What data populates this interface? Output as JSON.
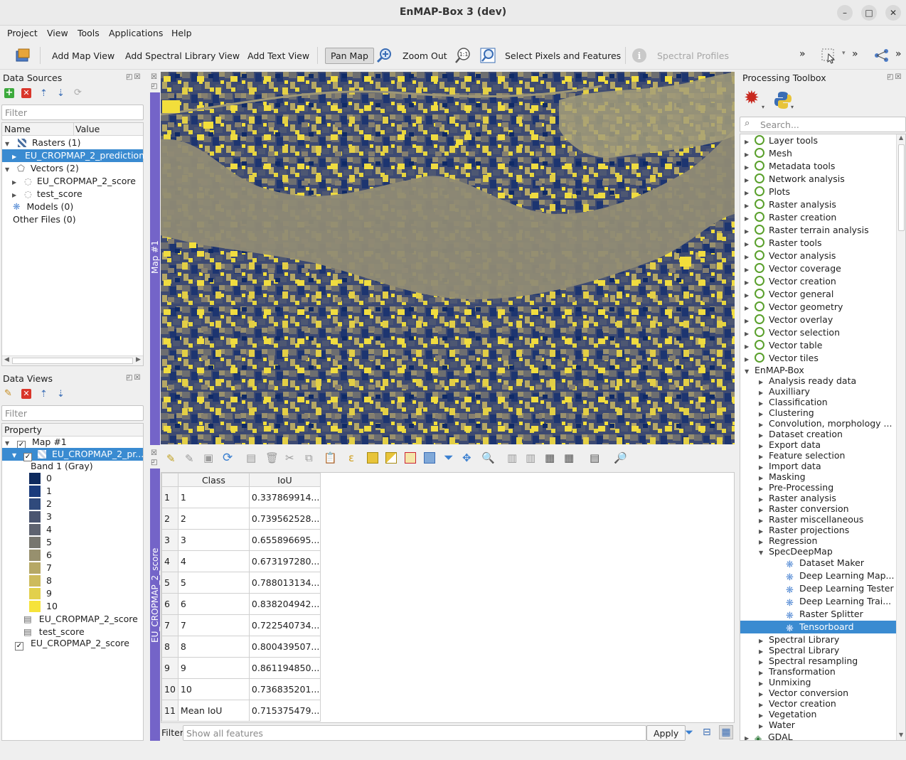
{
  "window": {
    "title": "EnMAP-Box 3 (dev)"
  },
  "menu": [
    "Project",
    "View",
    "Tools",
    "Applications",
    "Help"
  ],
  "toolbar": {
    "add_map_view": "Add Map View",
    "add_spectral_library_view": "Add Spectral Library View",
    "add_text_view": "Add Text View",
    "pan_map": "Pan Map",
    "zoom_out": "Zoom Out",
    "select_pixels": "Select Pixels and Features",
    "spectral_profiles": "Spectral Profiles",
    "overflow": "»"
  },
  "data_sources": {
    "title": "Data Sources",
    "filter_placeholder": "Filter",
    "col_name": "Name",
    "col_value": "Value",
    "rasters": "Rasters (1)",
    "raster_item": "EU_CROPMAP_2_prediction",
    "vectors": "Vectors (2)",
    "vector_items": [
      "EU_CROPMAP_2_score",
      "test_score"
    ],
    "models": "Models (0)",
    "other_files": "Other Files (0)"
  },
  "data_views": {
    "title": "Data Views",
    "filter_placeholder": "Filter",
    "col_property": "Property",
    "map": "Map #1",
    "layer": "EU_CROPMAP_2_pr...",
    "band": "Band 1 (Gray)",
    "classes": [
      {
        "label": "0",
        "color": "#0e2a5e"
      },
      {
        "label": "1",
        "color": "#1a3b7c"
      },
      {
        "label": "2",
        "color": "#304a7c"
      },
      {
        "label": "3",
        "color": "#4a5570"
      },
      {
        "label": "4",
        "color": "#5e6370"
      },
      {
        "label": "5",
        "color": "#77766f"
      },
      {
        "label": "6",
        "color": "#97906e"
      },
      {
        "label": "7",
        "color": "#b6a866"
      },
      {
        "label": "8",
        "color": "#cdbb5c"
      },
      {
        "label": "9",
        "color": "#e2d04c"
      },
      {
        "label": "10",
        "color": "#f6e33a"
      }
    ],
    "extra_layers": [
      "EU_CROPMAP_2_score",
      "test_score"
    ],
    "score_view": "EU_CROPMAP_2_score"
  },
  "map_view": {
    "tab_label": "Map #1"
  },
  "attribute_table": {
    "tab_label": "EU_CROPMAP_2_score",
    "columns": [
      "Class",
      "IoU"
    ],
    "rows": [
      {
        "idx": "1",
        "class": "1",
        "iou": "0.337869914..."
      },
      {
        "idx": "2",
        "class": "2",
        "iou": "0.739562528..."
      },
      {
        "idx": "3",
        "class": "3",
        "iou": "0.655896695..."
      },
      {
        "idx": "4",
        "class": "4",
        "iou": "0.673197280..."
      },
      {
        "idx": "5",
        "class": "5",
        "iou": "0.788013134..."
      },
      {
        "idx": "6",
        "class": "6",
        "iou": "0.838204942..."
      },
      {
        "idx": "7",
        "class": "7",
        "iou": "0.722540734..."
      },
      {
        "idx": "8",
        "class": "8",
        "iou": "0.800439507..."
      },
      {
        "idx": "9",
        "class": "9",
        "iou": "0.861194850..."
      },
      {
        "idx": "10",
        "class": "10",
        "iou": "0.736835201..."
      },
      {
        "idx": "11",
        "class": "Mean IoU",
        "iou": "0.715375479..."
      }
    ],
    "filter_label": "Filter",
    "filter_placeholder": "Show all features",
    "apply": "Apply"
  },
  "processing": {
    "title": "Processing Toolbox",
    "search_placeholder": "Search...",
    "groups": [
      "Layer tools",
      "Mesh",
      "Metadata tools",
      "Network analysis",
      "Plots",
      "Raster analysis",
      "Raster creation",
      "Raster terrain analysis",
      "Raster tools",
      "Vector analysis",
      "Vector coverage",
      "Vector creation",
      "Vector general",
      "Vector geometry",
      "Vector overlay",
      "Vector selection",
      "Vector table",
      "Vector tiles"
    ],
    "enmap_box": "EnMAP-Box",
    "enmap_groups_a": [
      "Analysis ready data",
      "Auxilliary",
      "Classification",
      "Clustering",
      "Convolution, morphology ...",
      "Dataset creation",
      "Export data",
      "Feature selection",
      "Import data",
      "Masking",
      "Pre-Processing",
      "Raster analysis",
      "Raster conversion",
      "Raster miscellaneous",
      "Raster projections",
      "Regression"
    ],
    "specdeepmap": "SpecDeepMap",
    "spec_tools": [
      "Dataset Maker",
      "Deep Learning Map...",
      "Deep Learning Tester",
      "Deep Learning Trai...",
      "Raster Splitter",
      "Tensorboard"
    ],
    "enmap_groups_b": [
      "Spectral Library",
      "Spectral Library",
      "Spectral resampling",
      "Transformation",
      "Unmixing",
      "Vector conversion",
      "Vector creation",
      "Vegetation",
      "Water"
    ],
    "gdal": "GDAL"
  }
}
